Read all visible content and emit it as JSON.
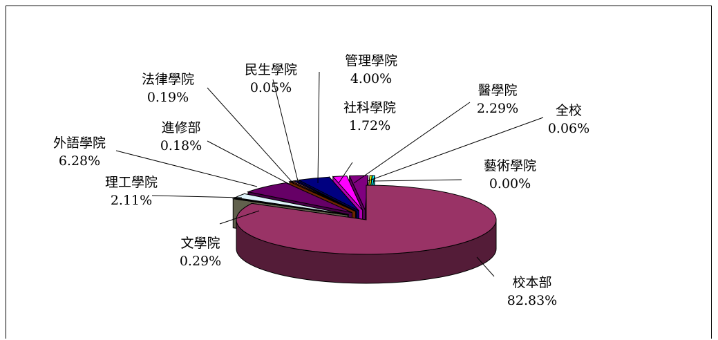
{
  "chart_data": {
    "type": "pie",
    "title": "",
    "series": [
      {
        "name": "",
        "categories": [
          "校本部",
          "文學院",
          "理工學院",
          "外語學院",
          "進修部",
          "法律學院",
          "民生學院",
          "管理學院",
          "社科學院",
          "醫學院",
          "全校",
          "藝術學院"
        ],
        "values": [
          82.83,
          0.29,
          2.11,
          6.28,
          0.18,
          0.19,
          0.05,
          4.0,
          1.72,
          2.29,
          0.06,
          0.0
        ]
      }
    ],
    "slices": [
      {
        "label": "校本部",
        "pct": "82.83%",
        "value": 82.83,
        "color": "#993366"
      },
      {
        "label": "文學院",
        "pct": "0.29%",
        "value": 0.29,
        "color": "#8a8a6e"
      },
      {
        "label": "理工學院",
        "pct": "2.11%",
        "value": 2.11,
        "color": "#dff3fb"
      },
      {
        "label": "外語學院",
        "pct": "6.28%",
        "value": 6.28,
        "color": "#660066"
      },
      {
        "label": "進修部",
        "pct": "0.18%",
        "value": 0.18,
        "color": "#993300"
      },
      {
        "label": "法律學院",
        "pct": "0.19%",
        "value": 0.19,
        "color": "#cc6677"
      },
      {
        "label": "民生學院",
        "pct": "0.05%",
        "value": 0.05,
        "color": "#0000aa"
      },
      {
        "label": "管理學院",
        "pct": "4.00%",
        "value": 4.0,
        "color": "#000080"
      },
      {
        "label": "社科學院",
        "pct": "1.72%",
        "value": 1.72,
        "color": "#ff00ff"
      },
      {
        "label": "醫學院",
        "pct": "2.29%",
        "value": 2.29,
        "color": "#800080"
      },
      {
        "label": "全校",
        "pct": "0.06%",
        "value": 0.06,
        "color": "#ffff00"
      },
      {
        "label": "藝術學院",
        "pct": "0.00%",
        "value": 0.0,
        "color": "#00ffff"
      }
    ],
    "legend": "none",
    "style": "3d-exploded-pie"
  }
}
